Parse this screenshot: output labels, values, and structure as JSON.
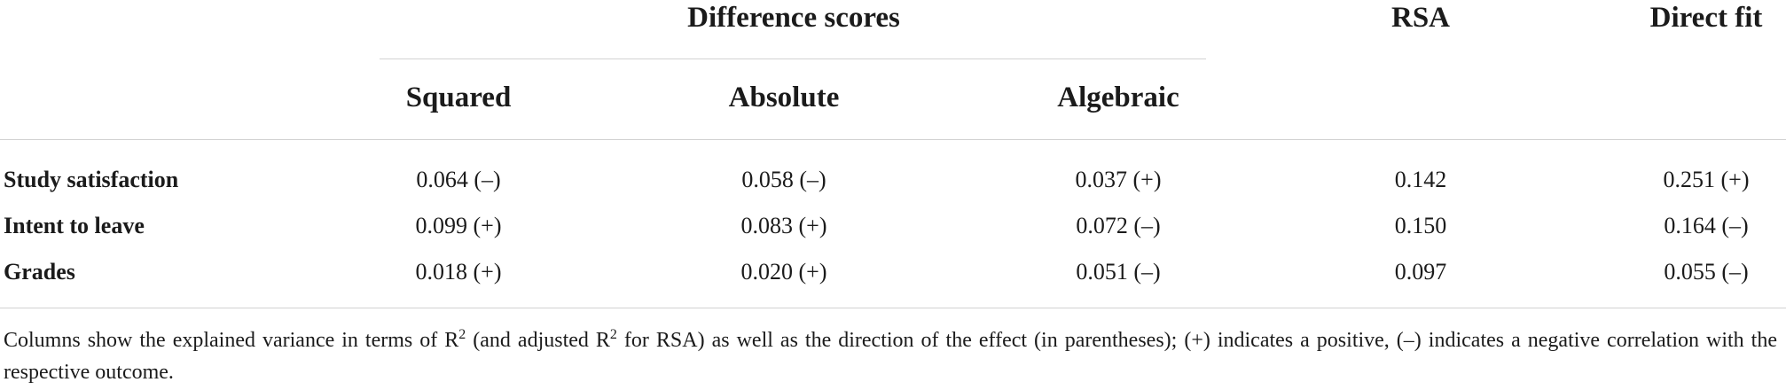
{
  "table": {
    "group_header": "Difference scores",
    "top_headers": {
      "rsa": "RSA",
      "direct_fit": "Direct fit"
    },
    "sub_headers": [
      "Squared",
      "Absolute",
      "Algebraic"
    ],
    "rows": [
      {
        "label": "Study satisfaction",
        "cells": [
          "0.064 (–)",
          "0.058 (–)",
          "0.037 (+)",
          "0.142",
          "0.251 (+)"
        ]
      },
      {
        "label": "Intent to leave",
        "cells": [
          "0.099 (+)",
          "0.083 (+)",
          "0.072 (–)",
          "0.150",
          "0.164 (–)"
        ]
      },
      {
        "label": "Grades",
        "cells": [
          "0.018 (+)",
          "0.020 (+)",
          "0.051 (–)",
          "0.097",
          "0.055 (–)"
        ]
      }
    ]
  },
  "footnote": {
    "part1": "Columns show the explained variance in terms of R",
    "sup1": "2",
    "part2": " (and adjusted R",
    "sup2": "2",
    "part3": " for RSA) as well as the direction of the effect (in parentheses); (+) indicates a positive, (–) indicates a negative correlation with the respective outcome."
  }
}
